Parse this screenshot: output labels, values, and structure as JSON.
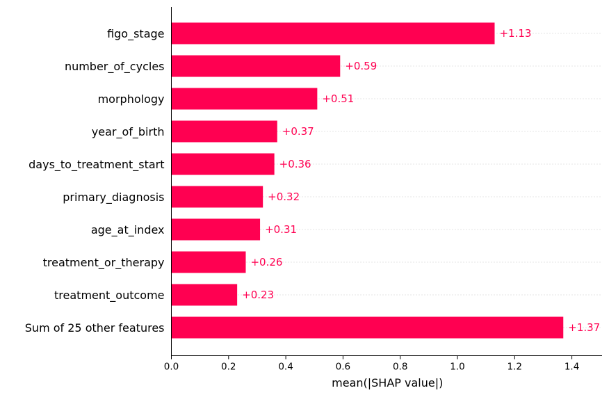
{
  "chart_data": {
    "type": "bar",
    "orientation": "horizontal",
    "categories": [
      "figo_stage",
      "number_of_cycles",
      "morphology",
      "year_of_birth",
      "days_to_treatment_start",
      "primary_diagnosis",
      "age_at_index",
      "treatment_or_therapy",
      "treatment_outcome",
      "Sum of 25 other features"
    ],
    "values": [
      1.13,
      0.59,
      0.51,
      0.37,
      0.36,
      0.32,
      0.31,
      0.26,
      0.23,
      1.37
    ],
    "value_labels": [
      "+1.13",
      "+0.59",
      "+0.51",
      "+0.37",
      "+0.36",
      "+0.32",
      "+0.31",
      "+0.26",
      "+0.23",
      "+1.37"
    ],
    "xlabel": "mean(|SHAP value|)",
    "ylabel": "",
    "xlim": [
      0,
      1.5
    ],
    "x_ticks": [
      0.0,
      0.2,
      0.4,
      0.6,
      0.8,
      1.0,
      1.2,
      1.4
    ],
    "x_tick_labels": [
      "0.0",
      "0.2",
      "0.4",
      "0.6",
      "0.8",
      "1.0",
      "1.2",
      "1.4"
    ],
    "gridlines": "dotted horizontal per bar",
    "bar_color": "#ff0051",
    "label_color": "#ff0051"
  }
}
